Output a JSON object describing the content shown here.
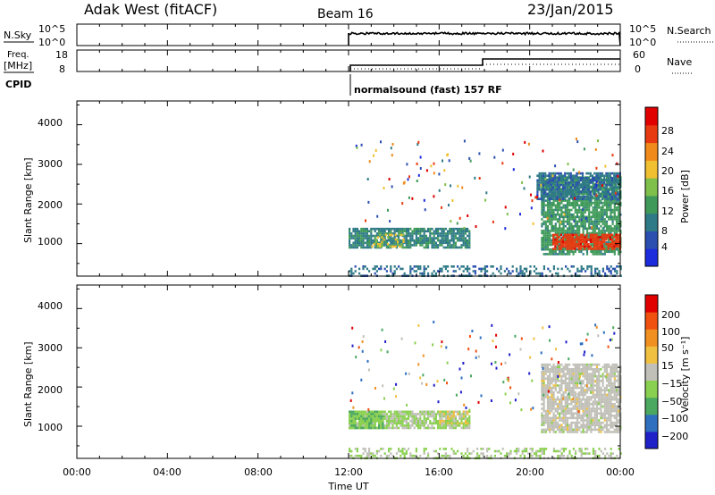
{
  "header": {
    "station": "Adak West (fitACF)",
    "beam": "Beam 16",
    "date": "23/Jan/2015"
  },
  "noise_panel": {
    "left_label": "N.Sky",
    "right_label": "N.Search",
    "left_ticks": [
      "10^5",
      "10^0"
    ],
    "right_ticks": [
      "10^5",
      "10^0"
    ]
  },
  "freq_panel": {
    "left_label_line1": "Freq.",
    "left_label_line2": "[MHz]",
    "right_label": "Nave",
    "left_ticks": [
      "18",
      "8"
    ],
    "right_ticks": [
      "60",
      "0"
    ],
    "cpid_label": "CPID",
    "cpid_text": "normalsound (fast) 157 RF"
  },
  "power_panel": {
    "ylabel": "Slant Range [km]",
    "yticks": [
      "4000",
      "3000",
      "2000",
      "1000"
    ],
    "colorbar_label": "Power [dB]",
    "colorbar_ticks": [
      "28",
      "24",
      "20",
      "16",
      "12",
      "8",
      "4"
    ]
  },
  "velocity_panel": {
    "ylabel": "Slant Range [km]",
    "yticks": [
      "4000",
      "3000",
      "2000",
      "1000"
    ],
    "colorbar_label": "Velocity [m s⁻¹]",
    "colorbar_ticks": [
      "200",
      "100",
      "50",
      "15",
      "−15",
      "−50",
      "−100",
      "−200"
    ]
  },
  "xaxis": {
    "ticks": [
      "00:00",
      "04:00",
      "08:00",
      "12:00",
      "16:00",
      "20:00",
      "00:00"
    ],
    "label": "Time UT"
  },
  "colors": {
    "power_scale": [
      "#1c2bdc",
      "#2b4fb0",
      "#2e7a86",
      "#3f9a5a",
      "#7fc04a",
      "#f0c030",
      "#f08a1a",
      "#e83a10",
      "#e00000"
    ],
    "velocity_scale": [
      "#2020c8",
      "#2f6fc0",
      "#4aa860",
      "#8ad050",
      "#c0c0b8",
      "#f0c040",
      "#f09020",
      "#f05010",
      "#e00000"
    ]
  },
  "chart_data": [
    {
      "type": "heatmap",
      "title": "Power",
      "x_unit": "hours UT",
      "xlim": [
        0,
        24
      ],
      "ylabel": "Slant Range [km]",
      "ylim": [
        180,
        4600
      ],
      "colorbar": {
        "label": "Power [dB]",
        "range": [
          0,
          32
        ]
      },
      "regions": [
        {
          "t": [
            12,
            17.3
          ],
          "r": [
            900,
            1400
          ],
          "value": 10
        },
        {
          "t": [
            13.0,
            14.4
          ],
          "r": [
            950,
            1250
          ],
          "value": 18
        },
        {
          "t": [
            20.5,
            24
          ],
          "r": [
            750,
            2700
          ],
          "value": 12
        },
        {
          "t": [
            21.0,
            24
          ],
          "r": [
            850,
            1250
          ],
          "value": 27
        },
        {
          "t": [
            20.3,
            24
          ],
          "r": [
            2100,
            2800
          ],
          "value": 8
        },
        {
          "t": [
            12,
            24
          ],
          "r": [
            180,
            450
          ],
          "value": 8
        }
      ]
    },
    {
      "type": "heatmap",
      "title": "Velocity",
      "x_unit": "hours UT",
      "xlim": [
        0,
        24
      ],
      "ylabel": "Slant Range [km]",
      "ylim": [
        180,
        4600
      ],
      "colorbar": {
        "label": "Velocity [m s⁻¹]",
        "range": [
          -250,
          250
        ]
      },
      "regions": [
        {
          "t": [
            12,
            17.3
          ],
          "r": [
            950,
            1400
          ],
          "value": -30
        },
        {
          "t": [
            12,
            13.5
          ],
          "r": [
            950,
            1400
          ],
          "value": -80
        },
        {
          "t": [
            16,
            17.3
          ],
          "r": [
            1100,
            1400
          ],
          "value": 40
        },
        {
          "t": [
            20.5,
            24
          ],
          "r": [
            850,
            2600
          ],
          "value": 0
        },
        {
          "t": [
            12,
            24
          ],
          "r": [
            180,
            450
          ],
          "value": -30
        }
      ]
    }
  ]
}
